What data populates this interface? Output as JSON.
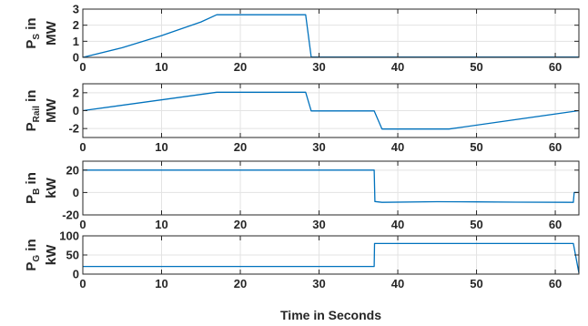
{
  "chart_data": [
    {
      "type": "line",
      "ylabel_main": "P",
      "ylabel_sub": "S",
      "ylabel_suffix": "in",
      "ylabel_unit": "MW",
      "xlim": [
        0,
        63
      ],
      "ylim": [
        0,
        3
      ],
      "xticks": [
        0,
        10,
        20,
        30,
        40,
        50,
        60
      ],
      "yticks": [
        0,
        1,
        2,
        3
      ],
      "grid": true,
      "color": "#0072bd",
      "x": [
        0,
        5,
        10,
        15,
        17,
        28.3,
        29,
        37,
        63
      ],
      "y": [
        0,
        0.6,
        1.35,
        2.2,
        2.65,
        2.65,
        0.02,
        0.02,
        0.02
      ]
    },
    {
      "type": "line",
      "ylabel_main": "P",
      "ylabel_sub": "Rail",
      "ylabel_suffix": "in",
      "ylabel_unit": "MW",
      "xlim": [
        0,
        63
      ],
      "ylim": [
        -3,
        3
      ],
      "xticks": [
        0,
        10,
        20,
        30,
        40,
        50,
        60
      ],
      "yticks": [
        -2,
        0,
        2
      ],
      "grid": true,
      "color": "#0072bd",
      "x": [
        0,
        17,
        28.3,
        29,
        37,
        38,
        46.5,
        63
      ],
      "y": [
        0,
        2.05,
        2.05,
        -0.03,
        -0.03,
        -2.05,
        -2.05,
        0
      ]
    },
    {
      "type": "line",
      "ylabel_main": "P",
      "ylabel_sub": "B",
      "ylabel_suffix": "in",
      "ylabel_unit": "kW",
      "xlim": [
        0,
        63
      ],
      "ylim": [
        -20,
        28
      ],
      "xticks": [
        0,
        10,
        20,
        30,
        40,
        50,
        60
      ],
      "yticks": [
        -20,
        0,
        20
      ],
      "grid": true,
      "color": "#0072bd",
      "x": [
        0,
        37,
        37.1,
        38,
        45,
        50,
        55,
        62.3,
        62.4,
        63
      ],
      "y": [
        20,
        20,
        -8,
        -8.8,
        -8.2,
        -8.4,
        -8.6,
        -8.8,
        0,
        0
      ]
    },
    {
      "type": "line",
      "ylabel_main": "P",
      "ylabel_sub": "G",
      "ylabel_suffix": "in",
      "ylabel_unit": "kW",
      "xlabel": "Time in Seconds",
      "xlim": [
        0,
        63
      ],
      "ylim": [
        0,
        100
      ],
      "xticks": [
        0,
        10,
        20,
        30,
        40,
        50,
        60
      ],
      "yticks": [
        0,
        50,
        100
      ],
      "grid": true,
      "color": "#0072bd",
      "x": [
        0,
        37,
        37.05,
        62.3,
        63
      ],
      "y": [
        20,
        20,
        80,
        80,
        3
      ]
    }
  ]
}
